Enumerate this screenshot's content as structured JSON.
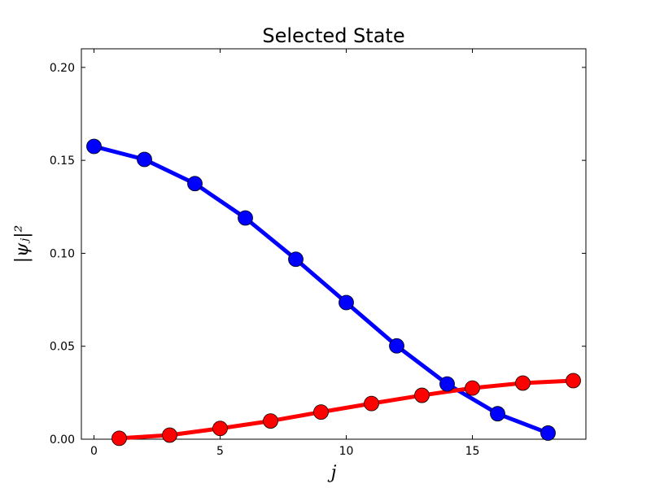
{
  "chart_data": {
    "type": "line",
    "title": "Selected State",
    "xlabel": "j",
    "ylabel": "|ψⱼ|²",
    "xlim": [
      -0.5,
      19.5
    ],
    "ylim": [
      0.0,
      0.21
    ],
    "xticks": [
      {
        "value": 0,
        "label": "0"
      },
      {
        "value": 5,
        "label": "5"
      },
      {
        "value": 10,
        "label": "10"
      },
      {
        "value": 15,
        "label": "15"
      }
    ],
    "yticks": [
      {
        "value": 0.0,
        "label": "0.00"
      },
      {
        "value": 0.05,
        "label": "0.05"
      },
      {
        "value": 0.1,
        "label": "0.10"
      },
      {
        "value": 0.15,
        "label": "0.15"
      },
      {
        "value": 0.2,
        "label": "0.20"
      }
    ],
    "grid": false,
    "series": [
      {
        "color": "#0000ff",
        "marker": "circle",
        "x": [
          0,
          2,
          4,
          6,
          8,
          10,
          12,
          14,
          16,
          18
        ],
        "values": [
          0.1575,
          0.1505,
          0.1375,
          0.119,
          0.0968,
          0.0735,
          0.0502,
          0.0297,
          0.0137,
          0.0033
        ]
      },
      {
        "color": "#ff0000",
        "marker": "circle",
        "x": [
          1,
          3,
          5,
          7,
          9,
          11,
          13,
          15,
          17,
          19
        ],
        "values": [
          0.0005,
          0.0022,
          0.0058,
          0.0098,
          0.0146,
          0.0192,
          0.0236,
          0.0275,
          0.0302,
          0.0315
        ]
      }
    ]
  }
}
